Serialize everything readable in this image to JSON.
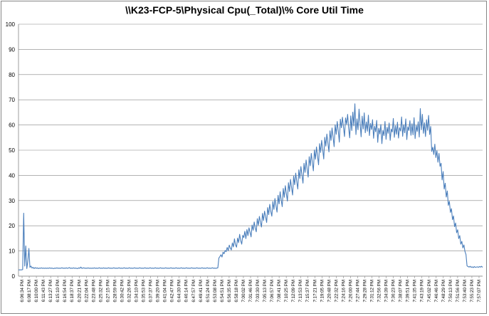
{
  "chart_data": {
    "type": "line",
    "title": "\\\\K23-FCP-5\\Physical Cpu(_Total)\\% Core Util Time",
    "xlabel": "",
    "ylabel": "",
    "ylim": [
      0,
      100
    ],
    "yticks": [
      0,
      10,
      20,
      30,
      40,
      50,
      60,
      70,
      80,
      90,
      100
    ],
    "grid": true,
    "legend": "none",
    "line_color": "#4a7ebb",
    "x_tick_labels": [
      "6:06:34 PM",
      "6:08:17 PM",
      "6:10:00 PM",
      "6:11:43 PM",
      "6:13:27 PM",
      "6:15:10 PM",
      "6:16:54 PM",
      "6:18:37 PM",
      "6:20:21 PM",
      "6:22:04 PM",
      "6:23:48 PM",
      "6:25:32 PM",
      "6:27:15 PM",
      "6:28:59 PM",
      "6:30:42 PM",
      "6:32:26 PM",
      "6:34:10 PM",
      "6:35:53 PM",
      "6:37:37 PM",
      "6:39:20 PM",
      "6:41:04 PM",
      "6:42:47 PM",
      "6:44:30 PM",
      "6:46:14 PM",
      "6:47:57 PM",
      "6:49:41 PM",
      "6:51:24 PM",
      "6:53:08 PM",
      "6:54:51 PM",
      "6:56:35 PM",
      "6:58:18 PM",
      "7:00:02 PM",
      "7:01:46 PM",
      "7:03:30 PM",
      "7:05:13 PM",
      "7:06:57 PM",
      "7:08:41 PM",
      "7:10:25 PM",
      "7:12:09 PM",
      "7:13:53 PM",
      "7:15:37 PM",
      "7:17:21 PM",
      "7:19:05 PM",
      "7:20:48 PM",
      "7:22:32 PM",
      "7:24:16 PM",
      "7:26:00 PM",
      "7:27:44 PM",
      "7:29:28 PM",
      "7:31:12 PM",
      "7:32:56 PM",
      "7:34:39 PM",
      "7:36:23 PM",
      "7:38:07 PM",
      "7:39:51 PM",
      "7:41:35 PM",
      "7:43:19 PM",
      "7:45:02 PM",
      "7:46:46 PM",
      "7:48:29 PM",
      "7:50:13 PM",
      "7:51:56 PM",
      "7:53:40 PM",
      "7:55:23 PM",
      "7:57:07 PM"
    ],
    "series": [
      {
        "values": [
          2.5,
          2.5,
          2.5,
          2.5,
          2.6,
          25,
          4,
          12,
          3,
          6,
          11,
          3.5,
          4,
          3.2,
          3.5,
          3,
          3.4,
          3.1,
          3.3,
          3,
          3.2,
          3.1,
          3.3,
          3.1,
          3.2,
          3.1,
          3.2,
          3.1,
          3.2,
          3.1,
          3.3,
          3.1,
          3.2,
          3.1,
          3,
          3.2,
          3.1,
          3.3,
          3.1,
          3.2,
          3.1,
          3.2,
          3.3,
          3.1,
          3.2,
          3.1,
          3.3,
          3.1,
          3.2,
          3.4,
          3.1,
          3.2,
          3.1,
          3.3,
          3.1,
          3.2,
          3.1,
          3,
          3.3,
          3.1,
          3.6,
          3.1,
          3.2,
          3.3,
          3.1,
          3.2,
          3.1,
          3.3,
          3.1,
          3.2,
          3.1,
          3.2,
          3.1,
          3.3,
          3.1,
          3.2,
          3.1,
          3.2,
          3.3,
          3.1,
          3.2,
          3.1,
          3.3,
          3.1,
          3.2,
          3.1,
          3.2,
          3.3,
          3.1,
          3.2,
          3.1,
          3.2,
          3.3,
          3.1,
          3.2,
          3.1,
          3.2,
          3.3,
          3.1,
          3.2,
          3.1,
          3.2,
          3.3,
          3.1,
          3.2,
          3.1,
          3.2,
          3.3,
          3.1,
          3.2,
          3.1,
          3.2,
          3.3,
          3.1,
          3.2,
          3.1,
          3.2,
          3.3,
          3.1,
          3.2,
          3.1,
          3.2,
          3.3,
          3.1,
          3.2,
          3.1,
          3.2,
          3.3,
          3.1,
          3.2,
          3.1,
          3.2,
          3.3,
          3.1,
          3.2,
          3.1,
          3.2,
          3.3,
          3.1,
          3.2,
          3.1,
          3.2,
          3.3,
          3.1,
          3.2,
          3.1,
          3.2,
          3.3,
          3.1,
          3.2,
          3.1,
          3.2,
          3.3,
          3.1,
          3.2,
          3.1,
          3.2,
          3.3,
          3.1,
          3.2,
          3.1,
          3.2,
          3.3,
          3.1,
          3.2,
          3.1,
          3.2,
          3.3,
          3.1,
          3.2,
          3.1,
          3.2,
          3.3,
          3.1,
          3.2,
          3.1,
          3.2,
          3.3,
          3.1,
          3.2,
          3.1,
          3.2,
          3.3,
          3.1,
          3.2,
          3.1,
          3.2,
          3.3,
          3.1,
          3.2,
          3.1,
          3.2,
          3.3,
          7.2,
          7.8,
          8.5,
          7.6,
          9.5,
          8.9,
          10.2,
          9.7,
          11.4,
          10.1,
          12.3,
          11.1,
          10.4,
          13.2,
          11.6,
          14.8,
          12.4,
          11.5,
          15.1,
          13.3,
          16.6,
          14.1,
          12.7,
          16.2,
          15.3,
          17.8,
          14.9,
          18.5,
          16.1,
          19.2,
          17.4,
          15.6,
          20.3,
          18.2,
          21.5,
          19.1,
          17.6,
          22.8,
          20.2,
          23.7,
          21.4,
          19.5,
          24.9,
          22.1,
          25.8,
          23.6,
          21.3,
          27.2,
          24.4,
          28.5,
          25.7,
          23.8,
          29.6,
          26.5,
          30.8,
          27.9,
          25.4,
          32.1,
          28.7,
          33.5,
          30.2,
          27.6,
          34.8,
          31.3,
          35.9,
          32.7,
          29.8,
          37.1,
          33.6,
          38.4,
          35.1,
          32.2,
          39.7,
          36.3,
          40.9,
          37.5,
          34.6,
          42.2,
          38.8,
          43.5,
          40.1,
          36.9,
          44.8,
          41.2,
          46.1,
          42.6,
          39.3,
          47.4,
          43.8,
          48.7,
          45.1,
          41.8,
          50.1,
          46.4,
          51.3,
          47.7,
          44.2,
          52.6,
          49.1,
          53.9,
          50.2,
          46.5,
          55.1,
          51.6,
          56.4,
          52.8,
          49.3,
          57.7,
          53.9,
          58.8,
          55.1,
          51.4,
          60.1,
          56.3,
          61.4,
          57.6,
          53.2,
          62.3,
          58.9,
          63.1,
          59.2,
          55.4,
          62.8,
          60.3,
          64.2,
          58.7,
          54.9,
          63.6,
          57.8,
          65.1,
          59.6,
          68.4,
          56.2,
          62.4,
          58.1,
          66.3,
          60.7,
          55.3,
          63.5,
          58.4,
          64.8,
          56.9,
          61.2,
          57.5,
          63.9,
          55.8,
          60.6,
          58.2,
          62.1,
          54.7,
          59.5,
          57.3,
          61.8,
          53.1,
          58.7,
          56.4,
          60.2,
          52.6,
          57.9,
          55.8,
          61.4,
          54.3,
          59.1,
          56.7,
          60.8,
          53.9,
          58.4,
          57.2,
          62.6,
          55.1,
          59.7,
          56.3,
          61.1,
          54.8,
          58.9,
          57.6,
          63.2,
          55.5,
          60.1,
          56.9,
          62.4,
          54.2,
          59.3,
          57.8,
          61.7,
          55.9,
          60.5,
          56.1,
          62.9,
          54.6,
          59.8,
          57.4,
          61.3,
          55.2,
          66.5,
          58.1,
          64.2,
          56.7,
          60.9,
          55.4,
          62.1,
          57.9,
          63.8,
          56.2,
          59.4,
          49.5,
          51.2,
          48.3,
          52.4,
          47.1,
          49.8,
          45.2,
          48.7,
          43.6,
          44.8,
          38.2,
          41.5,
          34.6,
          36.9,
          31.4,
          33.8,
          28.1,
          29.7,
          25.3,
          26.8,
          22.4,
          23.9,
          19.6,
          21.1,
          17.2,
          18.4,
          14.9,
          16.1,
          12.7,
          13.8,
          11.2,
          12.4,
          9.8,
          8.6,
          4.1,
          3.8,
          3.6,
          3.9,
          3.5,
          3.7,
          3.4,
          3.8,
          3.5,
          3.6,
          3.7,
          3.5,
          3.8,
          3.6,
          3.9,
          3.5
        ]
      }
    ]
  }
}
